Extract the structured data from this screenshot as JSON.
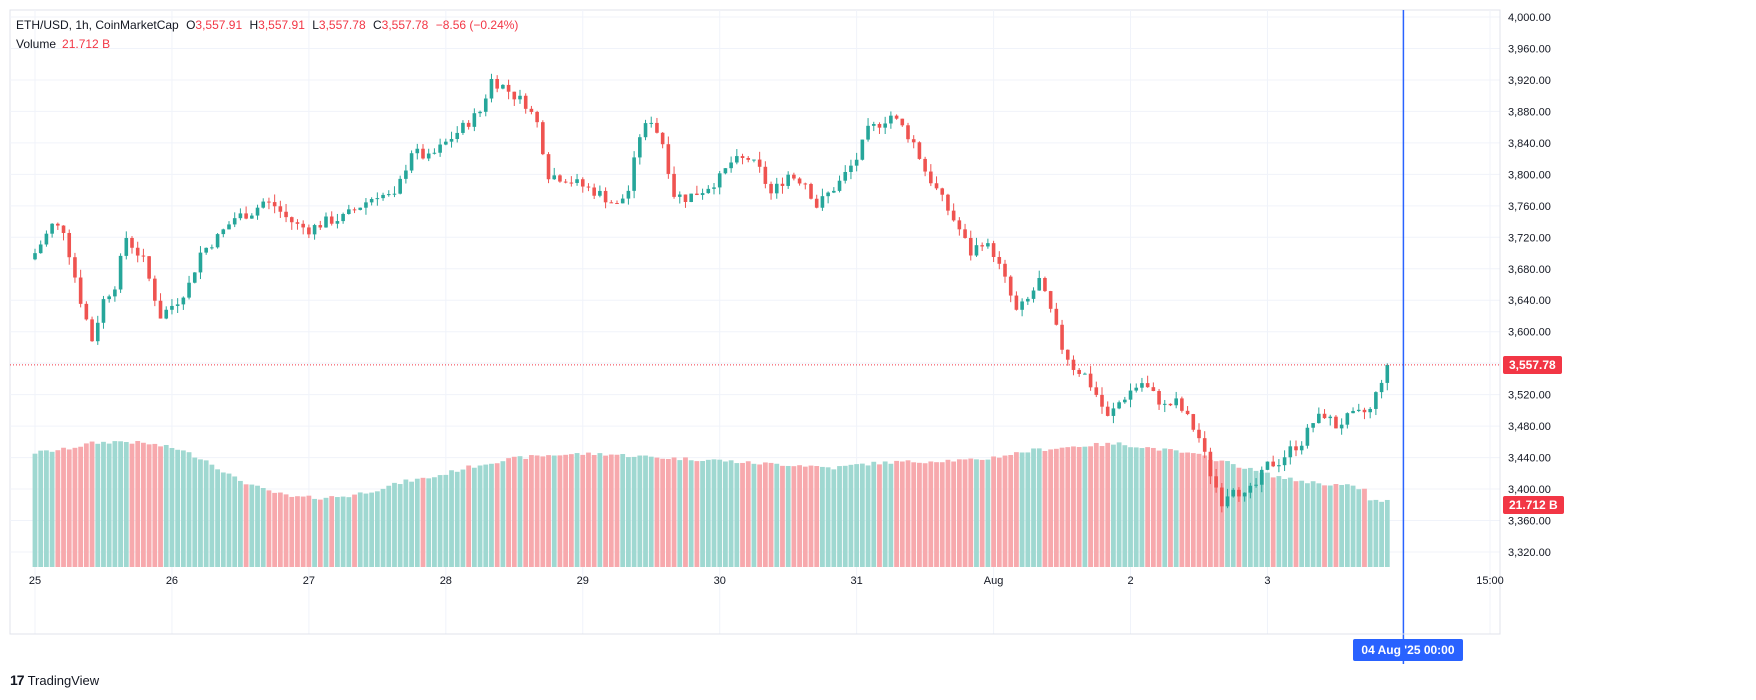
{
  "header": {
    "symbol_line": "ETH/USD, 1h, CoinMarketCap",
    "open_key": "O",
    "open_val": "3,557.91",
    "high_key": "H",
    "high_val": "3,557.91",
    "low_key": "L",
    "low_val": "3,557.78",
    "close_key": "C",
    "close_val": "3,557.78",
    "change": "−8.56 (−0.24%)",
    "volume_label": "Volume",
    "volume_value": "21.712 B"
  },
  "branding": {
    "logo_mark": "17",
    "logo_text": "TradingView"
  },
  "last_price_label": "3,557.78",
  "last_volume_label": "21.712 B",
  "crosshair_time_label": "04 Aug '25   00:00",
  "colors": {
    "up": "#26a69a",
    "down": "#ef5350",
    "vol_up": "#9fd8d1",
    "vol_down": "#f7a9ad",
    "crosshair": "#2962ff",
    "price_tag": "#f23645"
  },
  "chart_data": {
    "type": "candlestick",
    "y_axis": {
      "min": 3300,
      "max": 4000,
      "step": 40,
      "ticks": [
        "4,000.00",
        "3,960.00",
        "3,920.00",
        "3,880.00",
        "3,840.00",
        "3,800.00",
        "3,760.00",
        "3,720.00",
        "3,680.00",
        "3,640.00",
        "3,600.00",
        "3,560.00",
        "3,520.00",
        "3,480.00",
        "3,440.00",
        "3,400.00",
        "3,360.00",
        "3,320.00"
      ]
    },
    "x_axis": {
      "ticks": [
        {
          "label": "25",
          "hour": 0
        },
        {
          "label": "26",
          "hour": 24
        },
        {
          "label": "27",
          "hour": 48
        },
        {
          "label": "28",
          "hour": 72
        },
        {
          "label": "29",
          "hour": 96
        },
        {
          "label": "30",
          "hour": 120
        },
        {
          "label": "31",
          "hour": 144
        },
        {
          "label": "Aug",
          "hour": 168
        },
        {
          "label": "2",
          "hour": 192
        },
        {
          "label": "3",
          "hour": 216
        },
        {
          "label": "15:00",
          "hour": 255
        }
      ],
      "start_hour": -4,
      "end_hour": 256
    },
    "last_price": 3557.78,
    "anchors": [
      [
        0,
        3700
      ],
      [
        3,
        3735
      ],
      [
        5,
        3730
      ],
      [
        8,
        3640
      ],
      [
        10,
        3590
      ],
      [
        12,
        3640
      ],
      [
        14,
        3660
      ],
      [
        16,
        3720
      ],
      [
        19,
        3690
      ],
      [
        22,
        3620
      ],
      [
        25,
        3640
      ],
      [
        27,
        3660
      ],
      [
        29,
        3700
      ],
      [
        32,
        3720
      ],
      [
        35,
        3745
      ],
      [
        38,
        3752
      ],
      [
        40,
        3765
      ],
      [
        42,
        3760
      ],
      [
        44,
        3745
      ],
      [
        46,
        3735
      ],
      [
        48,
        3730
      ],
      [
        51,
        3740
      ],
      [
        54,
        3745
      ],
      [
        57,
        3760
      ],
      [
        60,
        3775
      ],
      [
        63,
        3770
      ],
      [
        66,
        3830
      ],
      [
        69,
        3820
      ],
      [
        72,
        3840
      ],
      [
        75,
        3860
      ],
      [
        78,
        3880
      ],
      [
        80,
        3920
      ],
      [
        82,
        3912
      ],
      [
        84,
        3900
      ],
      [
        86,
        3890
      ],
      [
        88,
        3865
      ],
      [
        90,
        3800
      ],
      [
        93,
        3795
      ],
      [
        96,
        3785
      ],
      [
        99,
        3775
      ],
      [
        102,
        3760
      ],
      [
        104,
        3780
      ],
      [
        106,
        3850
      ],
      [
        108,
        3870
      ],
      [
        110,
        3840
      ],
      [
        112,
        3775
      ],
      [
        114,
        3770
      ],
      [
        117,
        3780
      ],
      [
        120,
        3795
      ],
      [
        122,
        3815
      ],
      [
        125,
        3820
      ],
      [
        127,
        3805
      ],
      [
        129,
        3775
      ],
      [
        132,
        3800
      ],
      [
        135,
        3790
      ],
      [
        137,
        3760
      ],
      [
        139,
        3775
      ],
      [
        141,
        3790
      ],
      [
        144,
        3820
      ],
      [
        146,
        3855
      ],
      [
        148,
        3865
      ],
      [
        150,
        3875
      ],
      [
        152,
        3860
      ],
      [
        154,
        3840
      ],
      [
        156,
        3805
      ],
      [
        158,
        3780
      ],
      [
        160,
        3755
      ],
      [
        162,
        3730
      ],
      [
        164,
        3700
      ],
      [
        166,
        3715
      ],
      [
        168,
        3700
      ],
      [
        170,
        3665
      ],
      [
        172,
        3625
      ],
      [
        174,
        3640
      ],
      [
        176,
        3665
      ],
      [
        178,
        3625
      ],
      [
        180,
        3580
      ],
      [
        182,
        3555
      ],
      [
        184,
        3545
      ],
      [
        186,
        3520
      ],
      [
        188,
        3490
      ],
      [
        190,
        3510
      ],
      [
        192,
        3525
      ],
      [
        194,
        3535
      ],
      [
        196,
        3520
      ],
      [
        198,
        3505
      ],
      [
        200,
        3510
      ],
      [
        202,
        3490
      ],
      [
        204,
        3465
      ],
      [
        206,
        3420
      ],
      [
        208,
        3385
      ],
      [
        210,
        3405
      ],
      [
        212,
        3390
      ],
      [
        214,
        3405
      ],
      [
        216,
        3430
      ],
      [
        218,
        3435
      ],
      [
        220,
        3450
      ],
      [
        222,
        3460
      ],
      [
        224,
        3485
      ],
      [
        226,
        3495
      ],
      [
        228,
        3480
      ],
      [
        230,
        3490
      ],
      [
        232,
        3495
      ],
      [
        234,
        3500
      ],
      [
        236,
        3540
      ],
      [
        237,
        3557.78
      ]
    ],
    "volume": {
      "max": 40,
      "anchors": [
        [
          0,
          18
        ],
        [
          5,
          18.5
        ],
        [
          10,
          19.5
        ],
        [
          15,
          19.8
        ],
        [
          20,
          19.4
        ],
        [
          25,
          18.6
        ],
        [
          30,
          16.8
        ],
        [
          35,
          14
        ],
        [
          40,
          12.2
        ],
        [
          45,
          11
        ],
        [
          50,
          10.9
        ],
        [
          55,
          11.2
        ],
        [
          60,
          12.2
        ],
        [
          65,
          13.5
        ],
        [
          70,
          14.2
        ],
        [
          75,
          15.5
        ],
        [
          80,
          16.5
        ],
        [
          85,
          17.2
        ],
        [
          90,
          17.6
        ],
        [
          95,
          17.8
        ],
        [
          100,
          17.8
        ],
        [
          105,
          17.5
        ],
        [
          110,
          17.2
        ],
        [
          115,
          17
        ],
        [
          120,
          16.8
        ],
        [
          125,
          16.4
        ],
        [
          130,
          16.2
        ],
        [
          135,
          16
        ],
        [
          140,
          15.6
        ],
        [
          145,
          16.2
        ],
        [
          150,
          16.5
        ],
        [
          155,
          16.6
        ],
        [
          160,
          16.8
        ],
        [
          165,
          16.8
        ],
        [
          170,
          17.6
        ],
        [
          175,
          18.4
        ],
        [
          180,
          18.8
        ],
        [
          185,
          19.2
        ],
        [
          190,
          19.4
        ],
        [
          195,
          18.8
        ],
        [
          200,
          18.2
        ],
        [
          205,
          17.4
        ],
        [
          210,
          16.2
        ],
        [
          215,
          14.8
        ],
        [
          220,
          13.8
        ],
        [
          225,
          13.2
        ],
        [
          230,
          12.8
        ],
        [
          233,
          12.2
        ],
        [
          234,
          10.4
        ],
        [
          238,
          10.4
        ]
      ]
    }
  }
}
